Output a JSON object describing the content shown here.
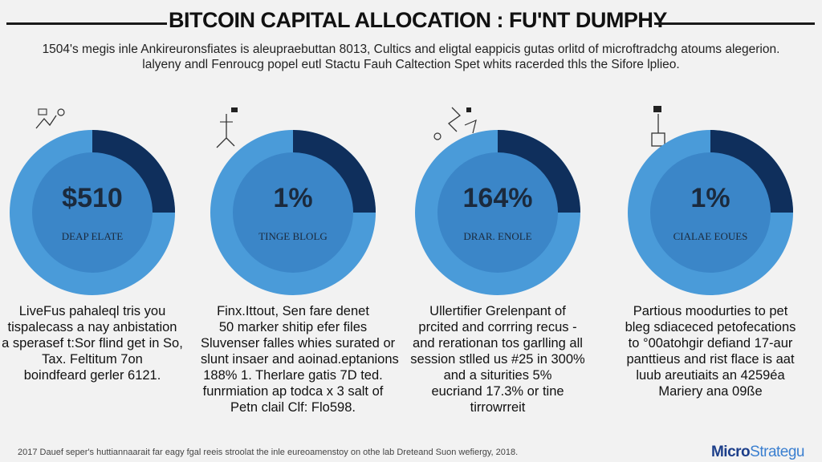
{
  "header": {
    "title": "BITCOIN CAPITAL ALLOCATION : FU'NT DUMPHY",
    "subtitle_lines": [
      "1504's megis inle Ankireuronsfiates is aleupraebuttan 8013, Cultics and eligtal eappicis gutas orlitd of microftradchg atoums alegerion.",
      "lalyeny andl Fenroucg popel eutl Stactu Fauh Caltection Spet whits racerded thls the Sifore lplieo."
    ]
  },
  "panels": [
    {
      "value": "$510",
      "label": "DEAP ELATE",
      "filled_fraction": 0.25,
      "description": [
        "LiveFus pahaleql tris you",
        "tispalecass a nay anbistation",
        "a sperasef t:Sor flind get in So,",
        "Tax. Feltitum 7on",
        "boindfeard gerler 6121."
      ]
    },
    {
      "value": "1%",
      "label": "TINGE BLOLG",
      "filled_fraction": 0.25,
      "description": [
        "Finx.Ittout, Sen fare denet",
        "50 marker shitip efer files",
        "Sluvenser falles whies surated or",
        "slunt insaer and aoinad.eptanions",
        "188% 1. Therlare gatis 7D ted.",
        "funrmiation ap todca x 3 salt of",
        "Petn clail Clf: Flo598."
      ]
    },
    {
      "value": "164%",
      "label": "DRAR. ENOLE",
      "filled_fraction": 0.25,
      "description": [
        "Ullertifier Grelenpant of",
        "prcited and corrring recus -",
        "and rerationan tos garlling all",
        "session stlled us #25 in 300%",
        "and a siturities 5%",
        "eucriand 17.3% or tine",
        "tirrowrreit"
      ]
    },
    {
      "value": "1%",
      "label": "CIALAE EOUES",
      "filled_fraction": 0.25,
      "description": [
        "Partious moodurties to pet",
        "bleg sdiaceced petofecations",
        "to °00atohgir defiand 17-aur",
        "panttieus and rist flace is aat",
        "luub areutiaits an 4259éa",
        "Mariery ana 09ße"
      ]
    }
  ],
  "footer": {
    "footnote": "2017 Dauef seper's huttiannaarait far eagy fgal reeis stroolat the inle eureoamenstoy on othe lab Dreteand Suon wefiergy, 2018.",
    "brand_main": "Micro",
    "brand_accent": "Strategu"
  },
  "colors": {
    "ring": "#4a9bd9",
    "inner": "#3b86c8",
    "wedge": "#0f2f5c",
    "label": "#1b2a3d"
  },
  "icons": [
    "doodle-icon",
    "doodle-icon",
    "doodle-icon",
    "doodle-icon"
  ]
}
